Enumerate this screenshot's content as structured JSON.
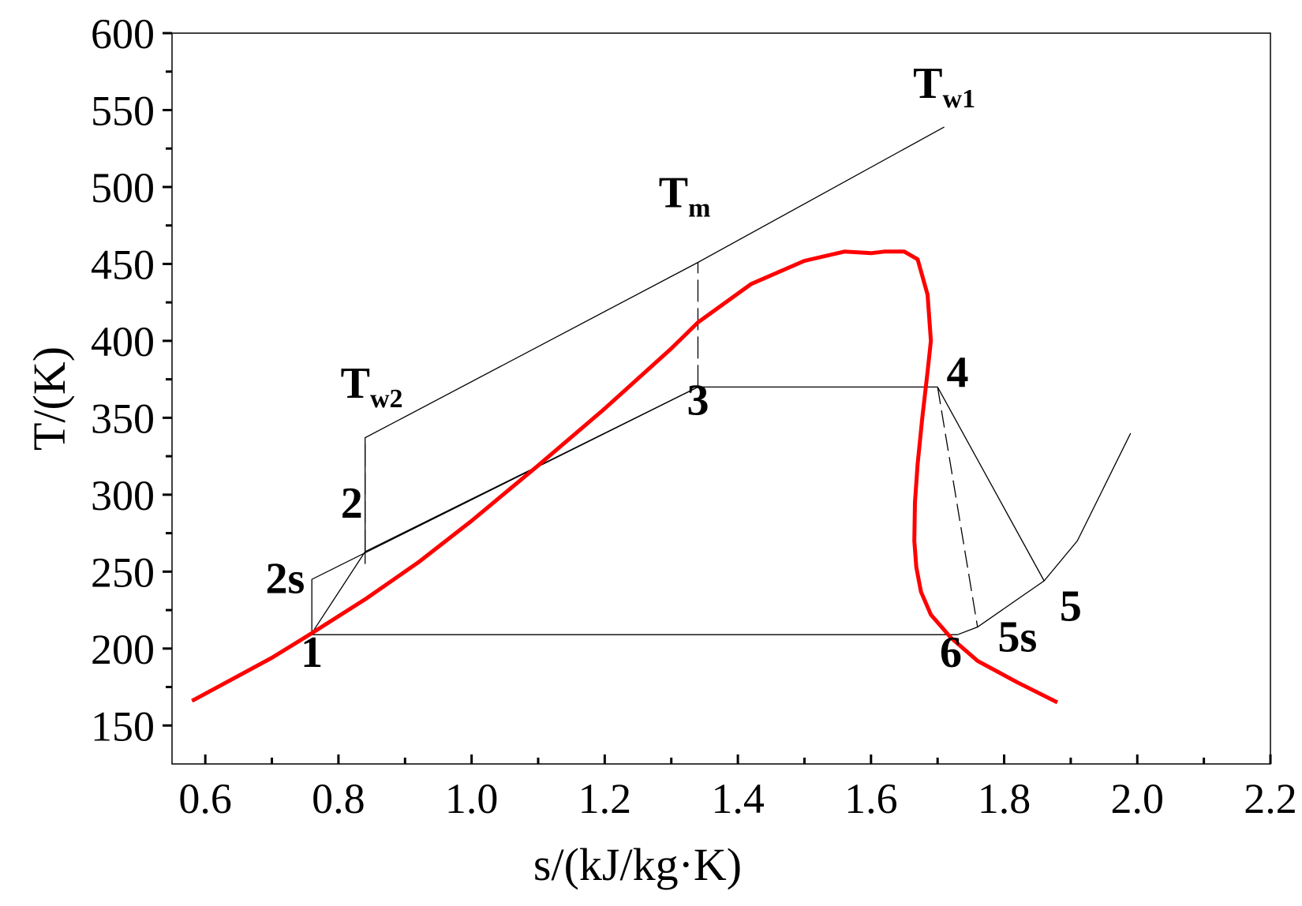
{
  "chart_data": {
    "type": "line",
    "xlabel": "s/(kJ/kg·K)",
    "ylabel": "T/(K)",
    "xlim": [
      0.55,
      2.2
    ],
    "ylim": [
      125,
      600
    ],
    "xticks": [
      "0.6",
      "0.8",
      "1.0",
      "1.2",
      "1.4",
      "1.6",
      "1.8",
      "2.0",
      "2.2"
    ],
    "yticks": [
      "150",
      "200",
      "250",
      "300",
      "350",
      "400",
      "450",
      "500",
      "550",
      "600"
    ],
    "grid": false,
    "colors": {
      "saturation": "#ff0000",
      "process": "#000000"
    },
    "series": [
      {
        "role": "saturation-dome",
        "x": [
          0.58,
          0.64,
          0.7,
          0.76,
          0.84,
          0.92,
          1.0,
          1.1,
          1.2,
          1.3,
          1.34,
          1.42,
          1.5,
          1.56,
          1.6,
          1.62,
          1.65,
          1.67,
          1.685,
          1.69,
          1.685,
          1.677,
          1.67,
          1.666,
          1.665,
          1.668,
          1.675,
          1.69,
          1.72,
          1.76,
          1.82,
          1.88
        ],
        "y": [
          166,
          180,
          194,
          210,
          232,
          256,
          283,
          319,
          356,
          395,
          412,
          437,
          452,
          458,
          457,
          458,
          458,
          453,
          430,
          400,
          380,
          350,
          320,
          295,
          270,
          253,
          237,
          222,
          207,
          192,
          178,
          165
        ]
      },
      {
        "role": "Tw1-Tw2-line",
        "x": [
          0.84,
          0.84,
          1.34,
          1.71
        ],
        "y": [
          255,
          337,
          451,
          539
        ]
      },
      {
        "role": "pump-and-heater",
        "x": [
          0.76,
          0.84,
          1.34,
          1.7
        ],
        "y": [
          210,
          263,
          370,
          370
        ]
      },
      {
        "role": "condenser",
        "x": [
          0.76,
          1.73
        ],
        "y": [
          209,
          209
        ]
      },
      {
        "role": "isentropic-pump-2s",
        "x": [
          0.76,
          0.76,
          1.34
        ],
        "y": [
          210,
          245,
          370
        ]
      },
      {
        "role": "turbine-4-5",
        "x": [
          1.7,
          1.86
        ],
        "y": [
          370,
          244
        ]
      },
      {
        "role": "turbine-4-5s-isentropic",
        "x": [
          1.7,
          1.76
        ],
        "y": [
          370,
          214
        ]
      },
      {
        "role": "vapor-isobar",
        "x": [
          1.73,
          1.76,
          1.82,
          1.86,
          1.91,
          1.95,
          1.99
        ],
        "y": [
          209,
          214,
          232,
          244,
          270,
          305,
          340
        ]
      }
    ],
    "point_labels": [
      {
        "text": "1",
        "x": 0.76,
        "y": 188
      },
      {
        "text": "2s",
        "x": 0.72,
        "y": 236
      },
      {
        "text": "2",
        "x": 0.82,
        "y": 285
      },
      {
        "text": "3",
        "x": 1.34,
        "y": 352
      },
      {
        "text": "4",
        "x": 1.73,
        "y": 370
      },
      {
        "text": "5s",
        "x": 1.82,
        "y": 198
      },
      {
        "text": "5",
        "x": 1.9,
        "y": 218
      },
      {
        "text": "6",
        "x": 1.72,
        "y": 188
      }
    ],
    "line_labels": [
      {
        "main": "T",
        "sub": "w1",
        "x": 1.71,
        "y": 558
      },
      {
        "main": "T",
        "sub": "m",
        "x": 1.32,
        "y": 487
      },
      {
        "main": "T",
        "sub": "w2",
        "x": 0.85,
        "y": 363
      }
    ]
  }
}
